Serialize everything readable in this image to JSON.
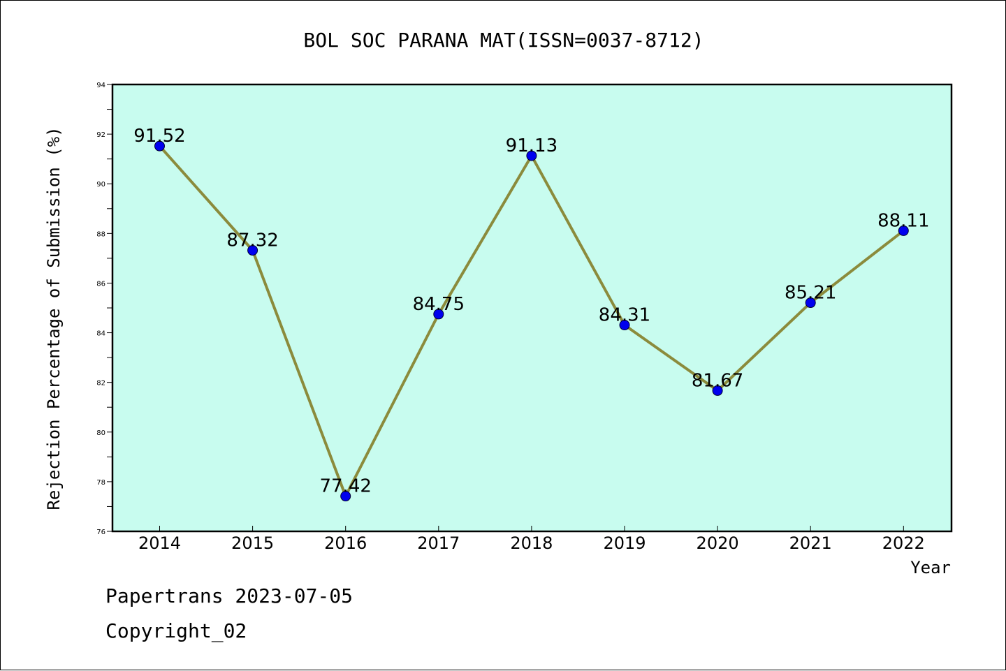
{
  "chart_data": {
    "type": "line",
    "title": "BOL SOC PARANA MAT(ISSN=0037-8712)",
    "xlabel": "Year",
    "ylabel": "Rejection Percentage of Submission (%)",
    "categories": [
      "2014",
      "2015",
      "2016",
      "2017",
      "2018",
      "2019",
      "2020",
      "2021",
      "2022"
    ],
    "values": [
      91.52,
      87.32,
      77.42,
      84.75,
      91.13,
      84.31,
      81.67,
      85.21,
      88.11
    ],
    "data_labels": [
      "91.52",
      "87.32",
      "77.42",
      "84.75",
      "91.13",
      "84.31",
      "81.67",
      "85.21",
      "88.11"
    ],
    "ylim": [
      76,
      94
    ],
    "yticks": [
      "76",
      "78",
      "80",
      "82",
      "84",
      "86",
      "88",
      "90",
      "92",
      "94"
    ],
    "grid": false,
    "line_color": "#8b8b3c",
    "marker_color": "#0000ee",
    "plot_background": "#c8fcef"
  },
  "footer": {
    "line1": "Papertrans 2023-07-05",
    "line2": "Copyright_02"
  }
}
